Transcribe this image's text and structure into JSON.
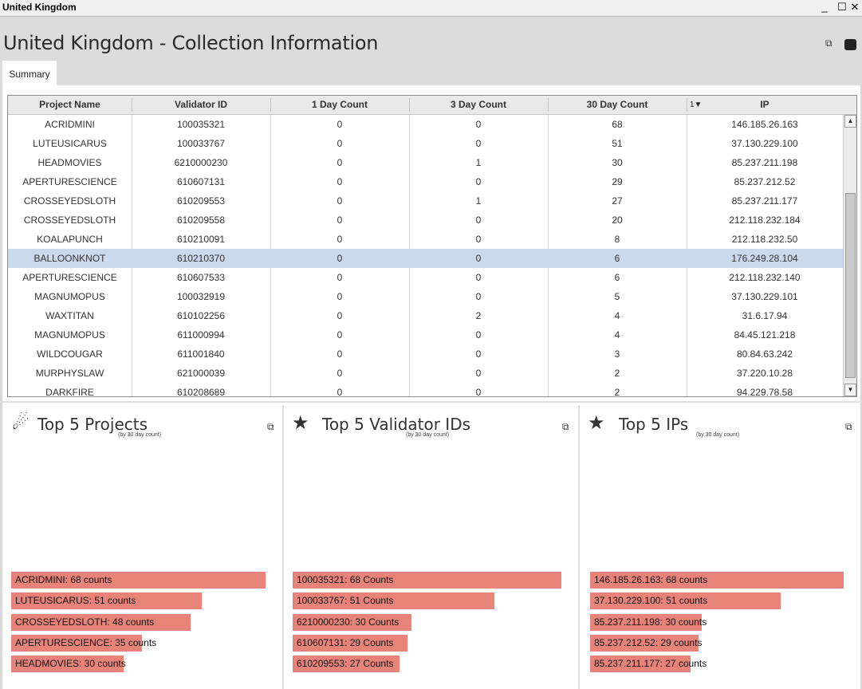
{
  "window": {
    "title": "United Kingdom",
    "minimize_glyph": "_",
    "maximize_glyph": "☐",
    "close_glyph": "✕"
  },
  "header": {
    "title": "United Kingdom - Collection Information",
    "export_icon": "expand-icon",
    "db_icon": "database-icon"
  },
  "tabs": [
    {
      "label": "Summary",
      "active": true
    }
  ],
  "table": {
    "columns": [
      "Project Name",
      "Validator ID",
      "1 Day Count",
      "3 Day Count",
      "30 Day Count",
      "IP"
    ],
    "sort_indicator": "1▼",
    "selected_row": 7,
    "rows": [
      [
        "ACRIDMINI",
        "100035321",
        "0",
        "0",
        "68",
        "146.185.26.163"
      ],
      [
        "LUTEUSICARUS",
        "100033767",
        "0",
        "0",
        "51",
        "37.130.229.100"
      ],
      [
        "HEADMOVIES",
        "6210000230",
        "0",
        "1",
        "30",
        "85.237.211.198"
      ],
      [
        "APERTURESCIENCE",
        "610607131",
        "0",
        "0",
        "29",
        "85.237.212.52"
      ],
      [
        "CROSSEYEDSLOTH",
        "610209553",
        "0",
        "1",
        "27",
        "85.237.211.177"
      ],
      [
        "CROSSEYEDSLOTH",
        "610209558",
        "0",
        "0",
        "20",
        "212.118.232.184"
      ],
      [
        "KOALAPUNCH",
        "610210091",
        "0",
        "0",
        "8",
        "212.118.232.50"
      ],
      [
        "BALLOONKNOT",
        "610210370",
        "0",
        "0",
        "6",
        "176.249.28.104"
      ],
      [
        "APERTURESCIENCE",
        "610607533",
        "0",
        "0",
        "6",
        "212.118.232.140"
      ],
      [
        "MAGNUMOPUS",
        "100032919",
        "0",
        "0",
        "5",
        "37.130.229.101"
      ],
      [
        "WAXTITAN",
        "610102256",
        "0",
        "2",
        "4",
        "31.6.17.94"
      ],
      [
        "MAGNUMOPUS",
        "611000994",
        "0",
        "0",
        "4",
        "84.45.121.218"
      ],
      [
        "WILDCOUGAR",
        "611001840",
        "0",
        "0",
        "3",
        "80.84.63.242"
      ],
      [
        "MURPHYSLAW",
        "621000039",
        "0",
        "0",
        "2",
        "37.220.10.28"
      ],
      [
        "DARKFIRE",
        "610208689",
        "0",
        "0",
        "2",
        "94.229.78.58"
      ]
    ]
  },
  "panels": [
    {
      "title": "Top 5 Projects",
      "subtitle": "(by 30 day count)",
      "icon": "comet-icon",
      "icon_glyph": "☄",
      "bars": [
        {
          "label": "ACRIDMINI: 68 counts",
          "value": 68
        },
        {
          "label": "LUTEUSICARUS: 51 counts",
          "value": 51
        },
        {
          "label": "CROSSEYEDSLOTH: 48 counts",
          "value": 48
        },
        {
          "label": "APERTURESCIENCE: 35 counts",
          "value": 35
        },
        {
          "label": "HEADMOVIES: 30 counts",
          "value": 30
        }
      ]
    },
    {
      "title": "Top 5 Validator IDs",
      "subtitle": "(by 30 day count)",
      "icon": "star-icon",
      "icon_glyph": "★",
      "bars": [
        {
          "label": "100035321: 68 Counts",
          "value": 68
        },
        {
          "label": "100033767: 51 Counts",
          "value": 51
        },
        {
          "label": "6210000230: 30 Counts",
          "value": 30
        },
        {
          "label": "610607131: 29 Counts",
          "value": 29
        },
        {
          "label": "610209553: 27 Counts",
          "value": 27
        }
      ]
    },
    {
      "title": "Top 5 IPs",
      "subtitle": "(by 30 day count)",
      "icon": "star-icon",
      "icon_glyph": "★",
      "bars": [
        {
          "label": "146.185.26.163: 68 counts",
          "value": 68
        },
        {
          "label": "37.130.229.100: 51 counts",
          "value": 51
        },
        {
          "label": "85.237.211.198: 30 counts",
          "value": 30
        },
        {
          "label": "85.237.212.52: 29 counts",
          "value": 29
        },
        {
          "label": "85.237.211.177: 27 counts",
          "value": 27
        }
      ]
    }
  ],
  "colors": {
    "bar": "#e8837a",
    "selected_row": "#ccd9ed",
    "header_bg": "#dcdcdc"
  },
  "expand_glyph": "⧉"
}
